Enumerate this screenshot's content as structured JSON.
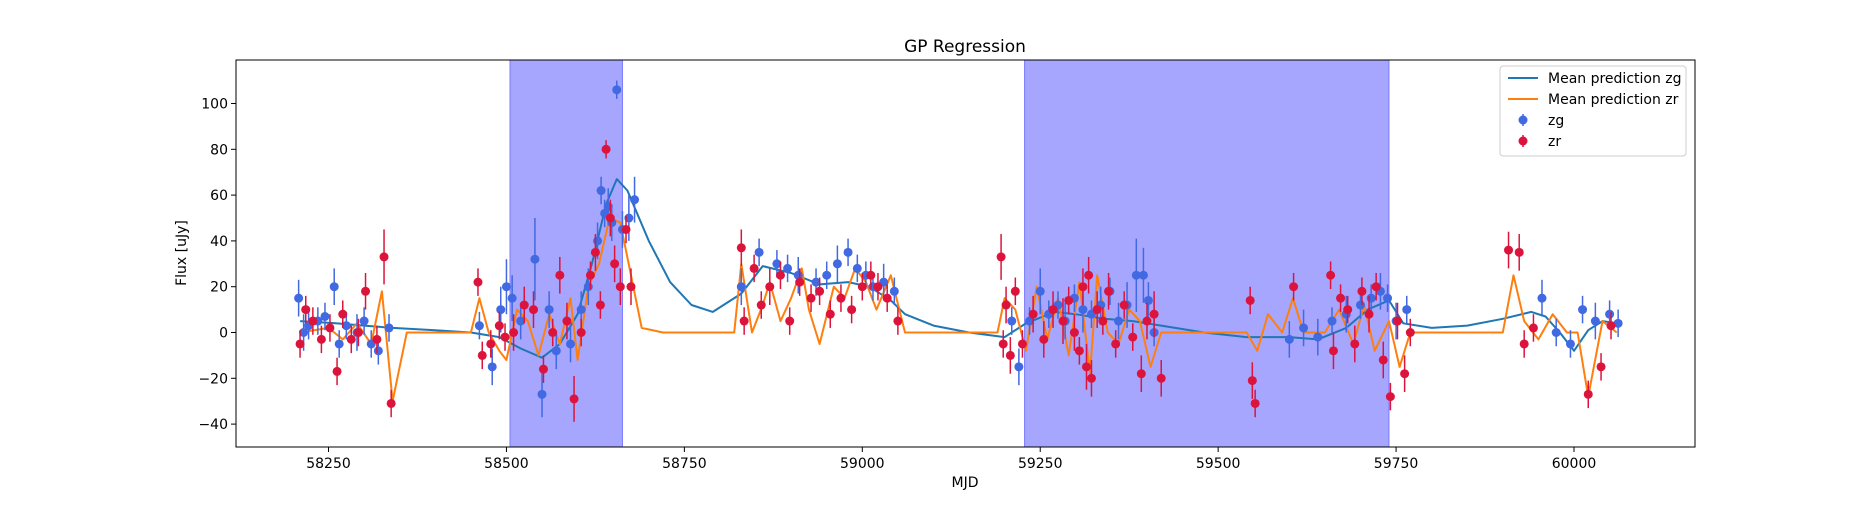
{
  "chart_data": {
    "type": "scatter",
    "title": "GP Regression",
    "xlabel": "MJD",
    "ylabel": "Flux [uJy]",
    "xlim": [
      58120,
      60170
    ],
    "ylim": [
      -50,
      119
    ],
    "xticks": [
      58250,
      58500,
      58750,
      59000,
      59250,
      59500,
      59750,
      60000
    ],
    "yticks": [
      -40,
      -20,
      0,
      20,
      40,
      60,
      80,
      100
    ],
    "grid": false,
    "legend": {
      "placement": "top-right",
      "entries": [
        "Mean prediction zg",
        "Mean prediction zr",
        "zg",
        "zr"
      ]
    },
    "colors": {
      "zg": "#4169e1",
      "zr": "#dc143c",
      "mean_zg": "#1f77b4",
      "mean_zr": "#ff7f0e",
      "shade": "#a6a6ff",
      "shade_edge": "#7b7bff"
    },
    "shaded_regions": [
      [
        58505,
        58663
      ],
      [
        59228,
        59740
      ]
    ],
    "series": [
      {
        "name": "Mean prediction zg",
        "kind": "line",
        "x": [
          58210,
          58260,
          58300,
          58340,
          58400,
          58450,
          58490,
          58520,
          58550,
          58575,
          58600,
          58620,
          58640,
          58655,
          58670,
          58700,
          58730,
          58760,
          58790,
          58830,
          58860,
          58900,
          58940,
          58980,
          59010,
          59040,
          59060,
          59100,
          59150,
          59200,
          59230,
          59270,
          59300,
          59340,
          59380,
          59420,
          59480,
          59540,
          59600,
          59640,
          59680,
          59710,
          59740,
          59760,
          59800,
          59850,
          59900,
          59940,
          59960,
          59980,
          60000,
          60020,
          60040,
          60060
        ],
        "y": [
          5,
          4,
          3,
          2,
          1,
          0,
          -2,
          -7,
          -11,
          -5,
          8,
          30,
          56,
          67,
          62,
          40,
          22,
          12,
          9,
          17,
          29,
          26,
          21,
          22,
          20,
          14,
          8,
          3,
          0,
          -2,
          4,
          9,
          8,
          6,
          5,
          3,
          0,
          -2,
          -2,
          -3,
          2,
          10,
          14,
          4,
          2,
          3,
          6,
          9,
          7,
          0,
          -8,
          1,
          5,
          4
        ]
      },
      {
        "name": "Mean prediction zr",
        "kind": "line",
        "x": [
          58210,
          58250,
          58270,
          58290,
          58310,
          58325,
          58340,
          58360,
          58400,
          58450,
          58462,
          58475,
          58490,
          58500,
          58515,
          58530,
          58545,
          58560,
          58575,
          58590,
          58600,
          58615,
          58630,
          58645,
          58660,
          58675,
          58690,
          58720,
          58780,
          58820,
          58830,
          58845,
          58860,
          58870,
          58885,
          58900,
          58915,
          58925,
          58940,
          58960,
          58975,
          58990,
          59005,
          59020,
          59040,
          59060,
          59100,
          59150,
          59190,
          59200,
          59215,
          59230,
          59245,
          59260,
          59275,
          59290,
          59305,
          59320,
          59330,
          59345,
          59360,
          59375,
          59390,
          59405,
          59420,
          59450,
          59500,
          59540,
          59555,
          59570,
          59590,
          59605,
          59620,
          59650,
          59670,
          59690,
          59705,
          59720,
          59740,
          59755,
          59770,
          59790,
          59850,
          59900,
          59915,
          59930,
          59950,
          59970,
          59990,
          60005,
          60020,
          60040,
          60060
        ],
        "y": [
          0,
          2,
          -3,
          4,
          -5,
          18,
          -30,
          0,
          0,
          0,
          15,
          0,
          -8,
          -12,
          10,
          5,
          -10,
          8,
          -5,
          15,
          -12,
          20,
          30,
          50,
          48,
          25,
          2,
          0,
          0,
          0,
          30,
          0,
          12,
          22,
          5,
          15,
          28,
          10,
          -5,
          20,
          15,
          28,
          22,
          10,
          25,
          0,
          0,
          0,
          0,
          15,
          10,
          -8,
          20,
          -3,
          15,
          -10,
          22,
          -18,
          25,
          0,
          -5,
          10,
          5,
          -15,
          0,
          0,
          0,
          0,
          -8,
          8,
          0,
          15,
          0,
          0,
          10,
          -5,
          12,
          -8,
          5,
          -15,
          0,
          0,
          0,
          0,
          25,
          5,
          -3,
          8,
          0,
          0,
          -28,
          5,
          0
        ]
      },
      {
        "name": "zg",
        "kind": "errorbar",
        "x": [
          58208,
          58215,
          58222,
          58235,
          58245,
          58258,
          58265,
          58275,
          58290,
          58300,
          58310,
          58320,
          58335,
          58462,
          58480,
          58492,
          58500,
          58508,
          58520,
          58540,
          58550,
          58560,
          58570,
          58590,
          58605,
          58615,
          58628,
          58633,
          58638,
          58643,
          58648,
          58655,
          58663,
          58672,
          58680,
          58830,
          58855,
          58880,
          58895,
          58910,
          58935,
          58950,
          58965,
          58980,
          58993,
          59005,
          59015,
          59030,
          59045,
          59210,
          59220,
          59235,
          59250,
          59262,
          59275,
          59285,
          59298,
          59310,
          59322,
          59335,
          59348,
          59360,
          59372,
          59385,
          59395,
          59402,
          59410,
          59600,
          59620,
          59640,
          59660,
          59680,
          59700,
          59715,
          59728,
          59738,
          59750,
          59765,
          59955,
          59975,
          59995,
          60012,
          60030,
          60050,
          60062
        ],
        "y": [
          15,
          0,
          3,
          5,
          7,
          20,
          -5,
          3,
          0,
          5,
          -5,
          -8,
          2,
          3,
          -15,
          10,
          20,
          15,
          5,
          32,
          -27,
          10,
          -8,
          -5,
          10,
          20,
          40,
          62,
          52,
          55,
          48,
          106,
          45,
          50,
          58,
          20,
          35,
          30,
          28,
          25,
          22,
          25,
          30,
          35,
          28,
          25,
          20,
          22,
          18,
          5,
          -15,
          5,
          18,
          8,
          12,
          5,
          15,
          10,
          8,
          12,
          18,
          5,
          12,
          25,
          25,
          14,
          0,
          -3,
          2,
          -2,
          5,
          8,
          12,
          15,
          18,
          15,
          5,
          10,
          15,
          0,
          -5,
          10,
          5,
          8,
          4
        ],
        "yerr": [
          8,
          8,
          6,
          6,
          6,
          8,
          6,
          6,
          8,
          6,
          6,
          6,
          6,
          6,
          8,
          10,
          12,
          10,
          8,
          18,
          10,
          8,
          8,
          8,
          8,
          8,
          8,
          6,
          6,
          8,
          8,
          4,
          8,
          10,
          10,
          8,
          6,
          6,
          6,
          8,
          6,
          6,
          8,
          6,
          6,
          6,
          6,
          8,
          6,
          6,
          8,
          6,
          10,
          6,
          6,
          8,
          6,
          10,
          6,
          8,
          6,
          8,
          10,
          16,
          12,
          8,
          6,
          8,
          8,
          8,
          6,
          8,
          6,
          6,
          8,
          6,
          8,
          6,
          8,
          6,
          6,
          6,
          8,
          6,
          6
        ]
      },
      {
        "name": "zr",
        "kind": "errorbar",
        "x": [
          58210,
          58218,
          58228,
          58240,
          58252,
          58262,
          58270,
          58282,
          58292,
          58302,
          58318,
          58328,
          58338,
          58460,
          58466,
          58478,
          58490,
          58498,
          58510,
          58525,
          58538,
          58552,
          58565,
          58575,
          58585,
          58595,
          58605,
          58618,
          58625,
          58632,
          58640,
          58646,
          58652,
          58660,
          58668,
          58675,
          58830,
          58834,
          58848,
          58858,
          58870,
          58885,
          58898,
          58912,
          58928,
          58940,
          58955,
          58970,
          58985,
          59000,
          59012,
          59022,
          59035,
          59050,
          59195,
          59198,
          59202,
          59208,
          59215,
          59225,
          59240,
          59255,
          59268,
          59282,
          59290,
          59298,
          59305,
          59310,
          59315,
          59318,
          59322,
          59330,
          59338,
          59346,
          59356,
          59368,
          59380,
          59392,
          59400,
          59410,
          59420,
          59545,
          59548,
          59552,
          59606,
          59658,
          59662,
          59672,
          59682,
          59692,
          59702,
          59712,
          59722,
          59732,
          59742,
          59752,
          59762,
          59770,
          59908,
          59923,
          59930,
          59943,
          60020,
          60038,
          60052
        ],
        "y": [
          -5,
          10,
          5,
          -3,
          2,
          -17,
          8,
          -3,
          0,
          18,
          -3,
          33,
          -31,
          22,
          -10,
          -5,
          3,
          -2,
          0,
          12,
          10,
          -16,
          0,
          25,
          5,
          -29,
          0,
          25,
          35,
          12,
          80,
          50,
          30,
          20,
          45,
          20,
          37,
          5,
          28,
          12,
          20,
          25,
          5,
          22,
          15,
          18,
          8,
          15,
          10,
          20,
          25,
          20,
          15,
          5,
          33,
          -5,
          12,
          -10,
          18,
          -5,
          8,
          -3,
          10,
          5,
          14,
          0,
          -8,
          20,
          -15,
          25,
          -20,
          10,
          5,
          18,
          -5,
          12,
          -2,
          -18,
          5,
          8,
          -20,
          14,
          -21,
          -31,
          20,
          25,
          -8,
          15,
          10,
          -5,
          18,
          8,
          20,
          -12,
          -28,
          5,
          -18,
          0,
          36,
          35,
          -5,
          2,
          -27,
          -15,
          3
        ],
        "yerr": [
          6,
          6,
          6,
          6,
          6,
          6,
          6,
          6,
          6,
          8,
          6,
          12,
          6,
          6,
          6,
          6,
          6,
          6,
          8,
          8,
          8,
          6,
          6,
          8,
          8,
          10,
          6,
          6,
          8,
          6,
          4,
          8,
          8,
          8,
          6,
          8,
          8,
          6,
          6,
          6,
          8,
          6,
          6,
          6,
          6,
          6,
          6,
          6,
          6,
          6,
          6,
          6,
          6,
          6,
          10,
          6,
          8,
          8,
          6,
          6,
          8,
          8,
          8,
          10,
          6,
          8,
          6,
          8,
          10,
          8,
          8,
          8,
          6,
          8,
          6,
          6,
          6,
          8,
          8,
          10,
          8,
          6,
          8,
          6,
          6,
          6,
          8,
          6,
          6,
          8,
          6,
          8,
          6,
          8,
          6,
          8,
          8,
          6,
          8,
          8,
          6,
          6,
          6,
          6,
          6
        ]
      }
    ]
  }
}
